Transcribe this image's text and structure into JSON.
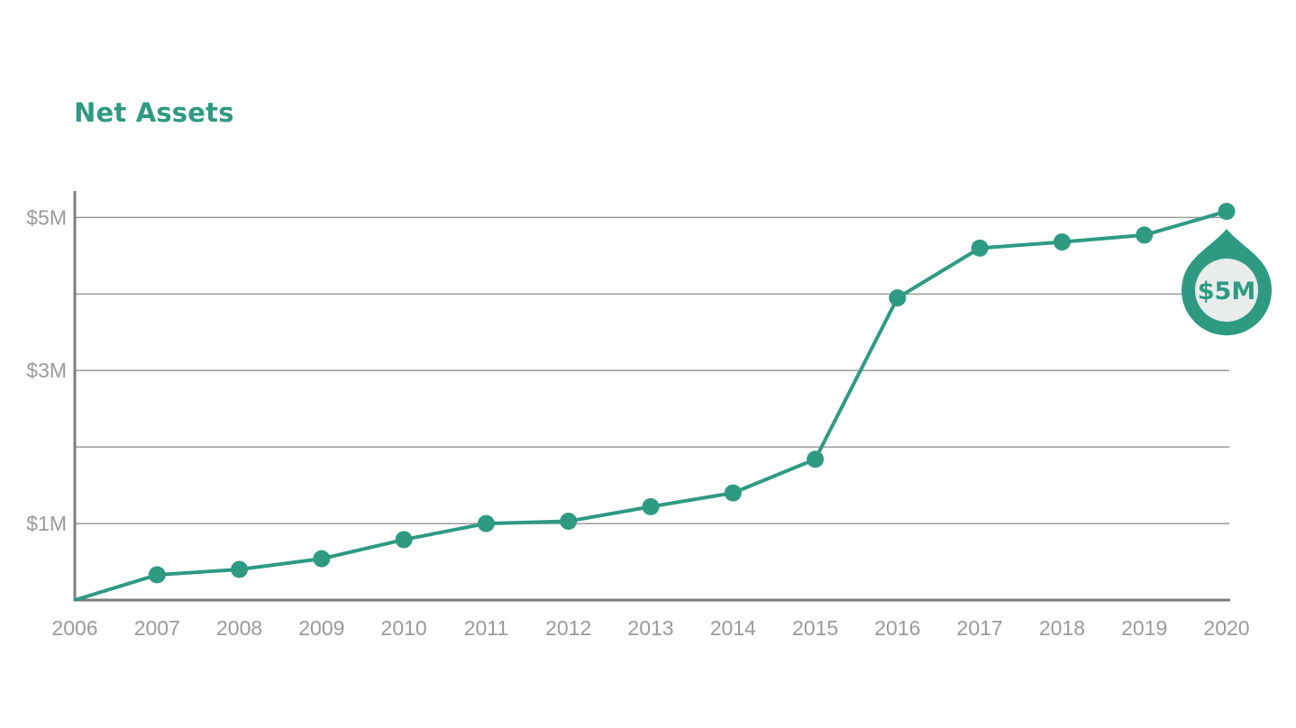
{
  "colors": {
    "accent": "#2e9a82",
    "grid": "#9a9a9a",
    "axis": "#7d7d7d",
    "tick_text": "#9a9a9a",
    "callout_fill": "#e8eceb"
  },
  "chart_data": {
    "type": "line",
    "title": "Net Assets",
    "xlabel": "",
    "ylabel": "",
    "x": [
      2006,
      2007,
      2008,
      2009,
      2010,
      2011,
      2012,
      2013,
      2014,
      2015,
      2016,
      2017,
      2018,
      2019,
      2020
    ],
    "series": [
      {
        "values": [
          0,
          0.33,
          0.4,
          0.54,
          0.79,
          1.0,
          1.03,
          1.22,
          1.4,
          1.84,
          3.95,
          4.6,
          4.68,
          4.77,
          5.08
        ]
      }
    ],
    "ylim": [
      0,
      5.3
    ],
    "ytick_values": [
      1,
      2,
      3,
      4,
      5
    ],
    "ytick_labels": [
      "$1M",
      "",
      "$3M",
      "",
      "$5M"
    ],
    "xtick_labels": [
      "2006",
      "2007",
      "2008",
      "2009",
      "2010",
      "2011",
      "2012",
      "2013",
      "2014",
      "2015",
      "2016",
      "2017",
      "2018",
      "2019",
      "2020"
    ],
    "grid": "horizontal",
    "legend": "none",
    "callout": {
      "label": "$5M",
      "x": 2020
    }
  }
}
